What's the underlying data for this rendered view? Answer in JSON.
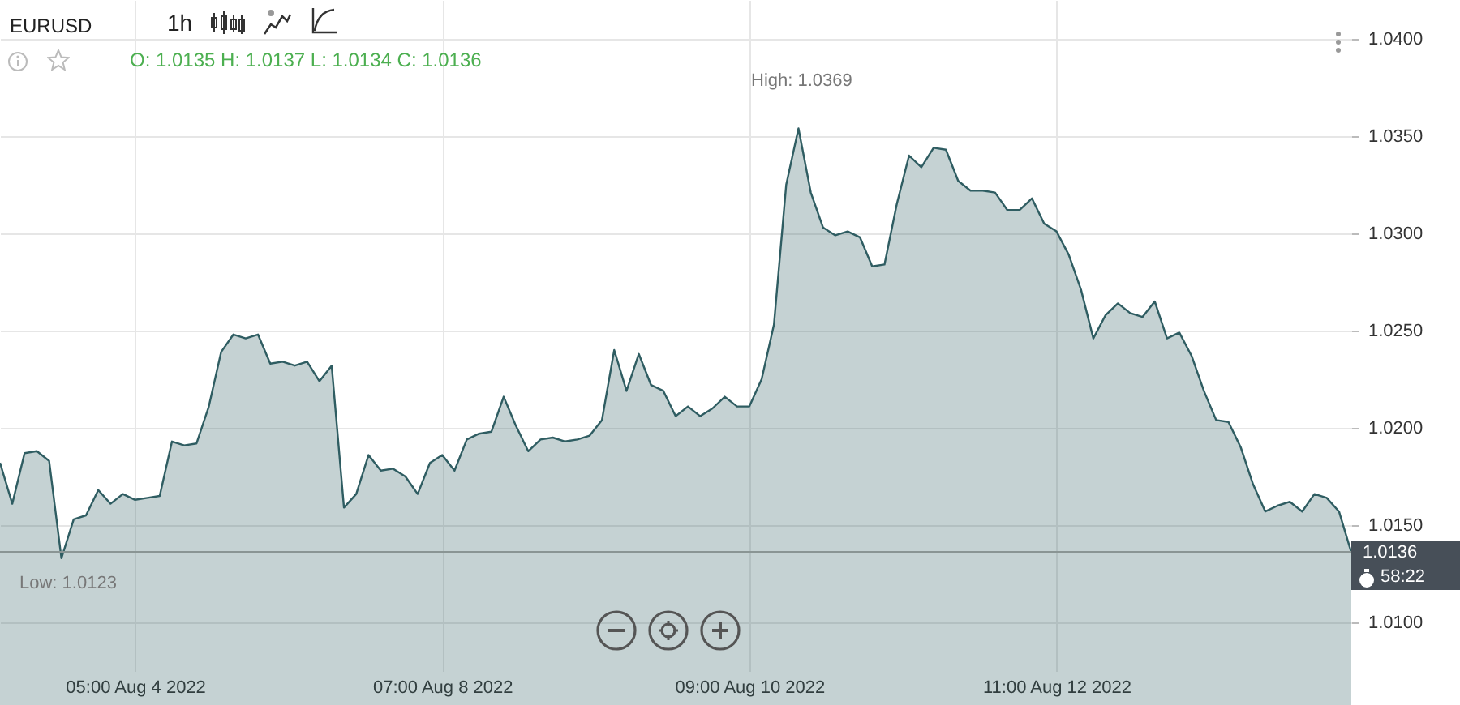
{
  "chart_data": {
    "type": "area",
    "title": "EURUSD",
    "annotations": [
      "1h",
      "O: 1.0135  H: 1.0137  L: 1.0134  C: 1.0136",
      "High: 1.0369",
      "Low: 1.0123",
      "58:22"
    ],
    "categories": [
      null,
      null,
      null,
      null,
      null,
      null,
      null,
      null,
      null,
      null,
      null,
      "05:00 Aug 4 2022",
      null,
      null,
      null,
      null,
      null,
      null,
      null,
      null,
      null,
      null,
      null,
      null,
      null,
      null,
      null,
      null,
      null,
      null,
      null,
      null,
      null,
      null,
      null,
      null,
      "07:00 Aug 8 2022",
      null,
      null,
      null,
      null,
      null,
      null,
      null,
      null,
      null,
      null,
      null,
      null,
      null,
      null,
      null,
      null,
      null,
      null,
      null,
      null,
      null,
      null,
      null,
      null,
      "09:00 Aug 10 2022",
      null,
      null,
      null,
      null,
      null,
      null,
      null,
      null,
      null,
      null,
      null,
      null,
      null,
      null,
      null,
      null,
      null,
      null,
      null,
      null,
      null,
      null,
      null,
      null,
      "11:00 Aug 12 2022",
      null,
      null,
      null,
      null,
      null,
      null,
      null,
      null,
      null,
      null,
      null,
      null,
      null,
      null,
      null,
      null,
      null,
      null,
      null,
      null,
      null,
      null,
      null,
      null
    ],
    "series": [
      {
        "color": "#2f5d62",
        "values": [
          1.0182,
          1.0161,
          1.0187,
          1.0188,
          1.0183,
          1.0133,
          1.0153,
          1.0155,
          1.0168,
          1.0161,
          1.0166,
          1.0163,
          1.0164,
          1.0165,
          1.0193,
          1.0191,
          1.0192,
          1.0211,
          1.0239,
          1.0248,
          1.0246,
          1.0248,
          1.0233,
          1.0234,
          1.0232,
          1.0234,
          1.0224,
          1.0232,
          1.0159,
          1.0166,
          1.0186,
          1.0178,
          1.0179,
          1.0175,
          1.0166,
          1.0182,
          1.0186,
          1.0178,
          1.0194,
          1.0197,
          1.0198,
          1.0216,
          1.0201,
          1.0188,
          1.0194,
          1.0195,
          1.0193,
          1.0194,
          1.0196,
          1.0204,
          1.024,
          1.0219,
          1.0238,
          1.0222,
          1.0219,
          1.0206,
          1.0211,
          1.0206,
          1.021,
          1.0216,
          1.0211,
          1.0211,
          1.0225,
          1.0253,
          1.0325,
          1.0354,
          1.0321,
          1.0303,
          1.0299,
          1.0301,
          1.0298,
          1.0283,
          1.0284,
          1.0315,
          1.034,
          1.0334,
          1.0344,
          1.0343,
          1.0327,
          1.0322,
          1.0322,
          1.0321,
          1.0312,
          1.0312,
          1.0318,
          1.0305,
          1.0301,
          1.0289,
          1.0271,
          1.0246,
          1.0258,
          1.0264,
          1.0259,
          1.0257,
          1.0265,
          1.0246,
          1.0249,
          1.0237,
          1.0219,
          1.0204,
          1.0203,
          1.019,
          1.0171,
          1.0157,
          1.016,
          1.0162,
          1.0157,
          1.0166,
          1.0164,
          1.0157,
          1.0136
        ]
      }
    ],
    "ylim": [
      1.0075,
      1.042
    ],
    "yticks": [
      {
        "value": 1.01,
        "label": "1.0100"
      },
      {
        "value": 1.015,
        "label": "1.0150"
      },
      {
        "value": 1.02,
        "label": "1.0200"
      },
      {
        "value": 1.025,
        "label": "1.0250"
      },
      {
        "value": 1.03,
        "label": "1.0300"
      },
      {
        "value": 1.035,
        "label": "1.0350"
      },
      {
        "value": 1.04,
        "label": "1.0400"
      }
    ],
    "ref_lines": [
      {
        "axis": "y",
        "value": 1.0136,
        "label": "1.0136",
        "color": "#8a9594"
      }
    ],
    "grid": true
  }
}
